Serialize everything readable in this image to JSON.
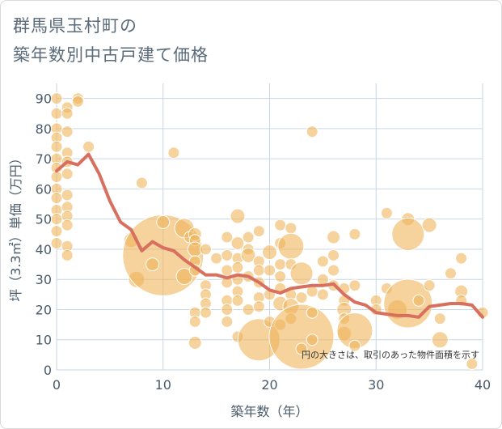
{
  "title_line1": "群馬県玉村町の",
  "title_line2": "築年数別中古戸建て価格",
  "chart_data": {
    "type": "scatter",
    "xlabel": "築年数（年）",
    "ylabel": "坪（3.3㎡）単価（万円）",
    "xlim": [
      0,
      40
    ],
    "ylim": [
      0,
      95
    ],
    "x_ticks": [
      "0",
      "10",
      "20",
      "30",
      "40"
    ],
    "y_ticks": [
      "0",
      "10",
      "20",
      "30",
      "40",
      "50",
      "60",
      "70",
      "80",
      "90"
    ],
    "note": "円の大きさは、取引のあった物件面積を示す",
    "grid": true,
    "colors": {
      "bubble": "#f0b45a",
      "bubble_edge": "#ffffff",
      "line": "#d87060",
      "grid": "#c9d6e3"
    },
    "line": {
      "x": [
        0,
        1,
        2,
        3,
        4,
        5,
        6,
        7,
        8,
        9,
        10,
        11,
        12,
        13,
        14,
        15,
        16,
        17,
        18,
        19,
        20,
        21,
        22,
        23,
        24,
        25,
        26,
        27,
        28,
        29,
        30,
        31,
        32,
        33,
        34,
        35,
        36,
        37,
        38,
        39,
        40
      ],
      "y": [
        66,
        69,
        68,
        71.5,
        65,
        56,
        49,
        46.5,
        39.5,
        42.5,
        40.5,
        39.5,
        36.5,
        34,
        31.5,
        31.5,
        30.5,
        31.5,
        31,
        29,
        26.5,
        25.5,
        27,
        27.5,
        28,
        28,
        28.5,
        25,
        22.5,
        21.5,
        19,
        18.5,
        18,
        18,
        17.5,
        21,
        21.5,
        22,
        22,
        21.5,
        17.5
      ]
    },
    "bubbles": [
      {
        "x": 0,
        "y": 90,
        "s": 7
      },
      {
        "x": 0,
        "y": 85,
        "s": 7
      },
      {
        "x": 0,
        "y": 80,
        "s": 7
      },
      {
        "x": 0,
        "y": 77,
        "s": 7
      },
      {
        "x": 0,
        "y": 74,
        "s": 7
      },
      {
        "x": 0,
        "y": 70,
        "s": 7
      },
      {
        "x": 0,
        "y": 67,
        "s": 7
      },
      {
        "x": 0,
        "y": 64,
        "s": 7
      },
      {
        "x": 0,
        "y": 60,
        "s": 7
      },
      {
        "x": 0,
        "y": 57,
        "s": 7
      },
      {
        "x": 0,
        "y": 53,
        "s": 7
      },
      {
        "x": 0,
        "y": 50,
        "s": 7
      },
      {
        "x": 0,
        "y": 46,
        "s": 7
      },
      {
        "x": 0,
        "y": 42,
        "s": 7
      },
      {
        "x": 1,
        "y": 87,
        "s": 7
      },
      {
        "x": 1,
        "y": 85,
        "s": 7
      },
      {
        "x": 1,
        "y": 79,
        "s": 7
      },
      {
        "x": 1,
        "y": 72,
        "s": 7
      },
      {
        "x": 1,
        "y": 69,
        "s": 7
      },
      {
        "x": 1,
        "y": 65,
        "s": 7
      },
      {
        "x": 1,
        "y": 58,
        "s": 7
      },
      {
        "x": 1,
        "y": 54,
        "s": 7
      },
      {
        "x": 1,
        "y": 51,
        "s": 7
      },
      {
        "x": 1,
        "y": 48,
        "s": 7
      },
      {
        "x": 1,
        "y": 41,
        "s": 7
      },
      {
        "x": 1,
        "y": 38,
        "s": 7
      },
      {
        "x": 2,
        "y": 90,
        "s": 7
      },
      {
        "x": 2,
        "y": 89,
        "s": 7
      },
      {
        "x": 3,
        "y": 74,
        "s": 7
      },
      {
        "x": 7,
        "y": 43,
        "s": 9
      },
      {
        "x": 7.5,
        "y": 30,
        "s": 10
      },
      {
        "x": 8,
        "y": 62,
        "s": 7
      },
      {
        "x": 10,
        "y": 38,
        "s": 50
      },
      {
        "x": 10,
        "y": 49,
        "s": 8
      },
      {
        "x": 9,
        "y": 35,
        "s": 8
      },
      {
        "x": 11,
        "y": 72,
        "s": 7
      },
      {
        "x": 12,
        "y": 47,
        "s": 12
      },
      {
        "x": 12,
        "y": 31,
        "s": 10
      },
      {
        "x": 12.5,
        "y": 44,
        "s": 7
      },
      {
        "x": 13,
        "y": 45,
        "s": 8
      },
      {
        "x": 13,
        "y": 43,
        "s": 7
      },
      {
        "x": 13,
        "y": 40,
        "s": 9
      },
      {
        "x": 13,
        "y": 36,
        "s": 7
      },
      {
        "x": 13,
        "y": 33,
        "s": 7
      },
      {
        "x": 13,
        "y": 19,
        "s": 7
      },
      {
        "x": 13,
        "y": 16,
        "s": 7
      },
      {
        "x": 13,
        "y": 9,
        "s": 8
      },
      {
        "x": 14,
        "y": 40,
        "s": 7
      },
      {
        "x": 14,
        "y": 28,
        "s": 7
      },
      {
        "x": 14,
        "y": 25,
        "s": 7
      },
      {
        "x": 14,
        "y": 22,
        "s": 7
      },
      {
        "x": 14,
        "y": 19,
        "s": 7
      },
      {
        "x": 15,
        "y": 37,
        "s": 7
      },
      {
        "x": 16,
        "y": 44,
        "s": 7
      },
      {
        "x": 16,
        "y": 38,
        "s": 7
      },
      {
        "x": 16,
        "y": 33,
        "s": 7
      },
      {
        "x": 16,
        "y": 29,
        "s": 7
      },
      {
        "x": 16,
        "y": 23,
        "s": 7
      },
      {
        "x": 16,
        "y": 20,
        "s": 7
      },
      {
        "x": 16,
        "y": 16,
        "s": 7
      },
      {
        "x": 17,
        "y": 51,
        "s": 9
      },
      {
        "x": 17,
        "y": 42,
        "s": 8
      },
      {
        "x": 17,
        "y": 37,
        "s": 7
      },
      {
        "x": 17,
        "y": 34,
        "s": 7
      },
      {
        "x": 17,
        "y": 30,
        "s": 7
      },
      {
        "x": 17,
        "y": 26,
        "s": 7
      },
      {
        "x": 17,
        "y": 23,
        "s": 7
      },
      {
        "x": 17,
        "y": 11,
        "s": 7
      },
      {
        "x": 18,
        "y": 44,
        "s": 7
      },
      {
        "x": 18,
        "y": 40,
        "s": 7
      },
      {
        "x": 18,
        "y": 38,
        "s": 9
      },
      {
        "x": 18,
        "y": 31,
        "s": 7
      },
      {
        "x": 18,
        "y": 20,
        "s": 7
      },
      {
        "x": 19,
        "y": 46,
        "s": 7
      },
      {
        "x": 19,
        "y": 36,
        "s": 7
      },
      {
        "x": 19,
        "y": 33,
        "s": 7
      },
      {
        "x": 19,
        "y": 29,
        "s": 7
      },
      {
        "x": 19,
        "y": 24,
        "s": 7
      },
      {
        "x": 19,
        "y": 21,
        "s": 7
      },
      {
        "x": 19,
        "y": 10,
        "s": 26
      },
      {
        "x": 20,
        "y": 39,
        "s": 9
      },
      {
        "x": 20,
        "y": 33,
        "s": 7
      },
      {
        "x": 20,
        "y": 25,
        "s": 7
      },
      {
        "x": 20,
        "y": 16,
        "s": 7
      },
      {
        "x": 21,
        "y": 48,
        "s": 7
      },
      {
        "x": 21,
        "y": 42,
        "s": 7
      },
      {
        "x": 21,
        "y": 35,
        "s": 7
      },
      {
        "x": 21,
        "y": 31,
        "s": 7
      },
      {
        "x": 21,
        "y": 27,
        "s": 7
      },
      {
        "x": 21,
        "y": 22,
        "s": 9
      },
      {
        "x": 21,
        "y": 15,
        "s": 7
      },
      {
        "x": 22,
        "y": 47,
        "s": 7
      },
      {
        "x": 22,
        "y": 41,
        "s": 16
      },
      {
        "x": 22,
        "y": 35,
        "s": 7
      },
      {
        "x": 22,
        "y": 25,
        "s": 7
      },
      {
        "x": 22,
        "y": 21,
        "s": 10
      },
      {
        "x": 22,
        "y": 17,
        "s": 7
      },
      {
        "x": 23,
        "y": 32,
        "s": 14
      },
      {
        "x": 23,
        "y": 24,
        "s": 7
      },
      {
        "x": 23,
        "y": 11,
        "s": 40
      },
      {
        "x": 23,
        "y": 7,
        "s": 7
      },
      {
        "x": 24,
        "y": 79,
        "s": 7
      },
      {
        "x": 24,
        "y": 26,
        "s": 7
      },
      {
        "x": 24,
        "y": 19,
        "s": 7
      },
      {
        "x": 24,
        "y": 10,
        "s": 7
      },
      {
        "x": 25,
        "y": 36,
        "s": 7
      },
      {
        "x": 25,
        "y": 30,
        "s": 7
      },
      {
        "x": 25,
        "y": 25,
        "s": 7
      },
      {
        "x": 26,
        "y": 44,
        "s": 8
      },
      {
        "x": 26,
        "y": 38,
        "s": 7
      },
      {
        "x": 26,
        "y": 33,
        "s": 7
      },
      {
        "x": 26,
        "y": 28,
        "s": 7
      },
      {
        "x": 27,
        "y": 27,
        "s": 7
      },
      {
        "x": 27,
        "y": 23,
        "s": 7
      },
      {
        "x": 27,
        "y": 20,
        "s": 9
      },
      {
        "x": 27,
        "y": 17,
        "s": 7
      },
      {
        "x": 27,
        "y": 12,
        "s": 9
      },
      {
        "x": 28,
        "y": 45,
        "s": 7
      },
      {
        "x": 28,
        "y": 28,
        "s": 7
      },
      {
        "x": 28,
        "y": 13,
        "s": 22
      },
      {
        "x": 28,
        "y": 8,
        "s": 7
      },
      {
        "x": 30,
        "y": 23,
        "s": 7
      },
      {
        "x": 30,
        "y": 20,
        "s": 7
      },
      {
        "x": 31,
        "y": 52,
        "s": 7
      },
      {
        "x": 31,
        "y": 27,
        "s": 7
      },
      {
        "x": 32,
        "y": 20,
        "s": 12
      },
      {
        "x": 33,
        "y": 50,
        "s": 8
      },
      {
        "x": 33,
        "y": 45,
        "s": 20
      },
      {
        "x": 33,
        "y": 22,
        "s": 30
      },
      {
        "x": 34,
        "y": 23,
        "s": 7
      },
      {
        "x": 35,
        "y": 28,
        "s": 7
      },
      {
        "x": 35,
        "y": 48,
        "s": 9
      },
      {
        "x": 36,
        "y": 10,
        "s": 10
      },
      {
        "x": 36,
        "y": 17,
        "s": 7
      },
      {
        "x": 37,
        "y": 32,
        "s": 7
      },
      {
        "x": 38,
        "y": 37,
        "s": 7
      },
      {
        "x": 38,
        "y": 26,
        "s": 8
      },
      {
        "x": 38,
        "y": 23,
        "s": 7
      },
      {
        "x": 39,
        "y": 2,
        "s": 7
      },
      {
        "x": 40,
        "y": 19,
        "s": 7
      }
    ]
  }
}
